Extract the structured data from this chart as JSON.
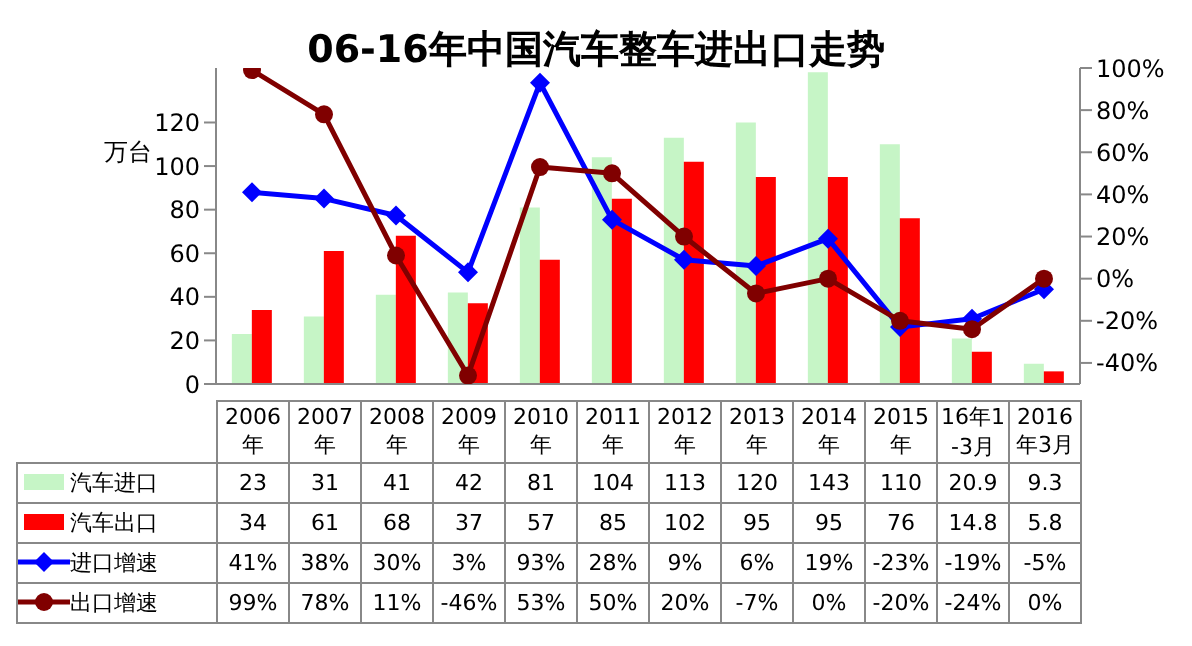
{
  "chart_data": {
    "type": "bar",
    "title": "06-16年中国汽车整车进出口走势",
    "ylabel": "万台",
    "categories": [
      "2006年",
      "2007年",
      "2008年",
      "2009年",
      "2010年",
      "2011年",
      "2012年",
      "2013年",
      "2014年",
      "2015年",
      "16年1-3月",
      "2016年3月"
    ],
    "series": [
      {
        "name": "汽车进口",
        "color": "#c6f5c6",
        "values": [
          23,
          31,
          41,
          42,
          81,
          104,
          113,
          120,
          143,
          110,
          20.9,
          9.3
        ],
        "value_labels": [
          "23",
          "31",
          "41",
          "42",
          "81",
          "104",
          "113",
          "120",
          "143",
          "110",
          "20.9",
          "9.3"
        ]
      },
      {
        "name": "汽车出口",
        "color": "#ff0000",
        "values": [
          34,
          61,
          68,
          37,
          57,
          85,
          102,
          95,
          95,
          76,
          14.8,
          5.8
        ],
        "value_labels": [
          "34",
          "61",
          "68",
          "37",
          "57",
          "85",
          "102",
          "95",
          "95",
          "76",
          "14.8",
          "5.8"
        ]
      },
      {
        "name": "进口增速",
        "type": "line",
        "axis": "y2",
        "marker": "diamond",
        "color": "#0000ff",
        "values": [
          41,
          38,
          30,
          3,
          93,
          28,
          9,
          6,
          19,
          -23,
          -19,
          -5
        ],
        "value_labels": [
          "41%",
          "38%",
          "30%",
          "3%",
          "93%",
          "28%",
          "9%",
          "6%",
          "19%",
          "-23%",
          "-19%",
          "-5%"
        ]
      },
      {
        "name": "出口增速",
        "type": "line",
        "axis": "y2",
        "marker": "circle",
        "color": "#800000",
        "values": [
          99,
          78,
          11,
          -46,
          53,
          50,
          20,
          -7,
          0,
          -20,
          -24,
          0
        ],
        "value_labels": [
          "99%",
          "78%",
          "11%",
          "-46%",
          "53%",
          "50%",
          "20%",
          "-7%",
          "0%",
          "-20%",
          "-24%",
          "0%"
        ]
      }
    ],
    "ylim": [
      0,
      145
    ],
    "yticks": [
      0,
      20,
      40,
      60,
      80,
      100,
      120
    ],
    "y2lim": [
      -50,
      100
    ],
    "y2ticks": [
      {
        "value": -40,
        "label": "-40%"
      },
      {
        "value": -20,
        "label": "-20%"
      },
      {
        "value": 0,
        "label": "0%"
      },
      {
        "value": 20,
        "label": "20%"
      },
      {
        "value": 40,
        "label": "40%"
      },
      {
        "value": 60,
        "label": "60%"
      },
      {
        "value": 80,
        "label": "80%"
      },
      {
        "value": 100,
        "label": "100%"
      }
    ],
    "legend": "bottom"
  }
}
